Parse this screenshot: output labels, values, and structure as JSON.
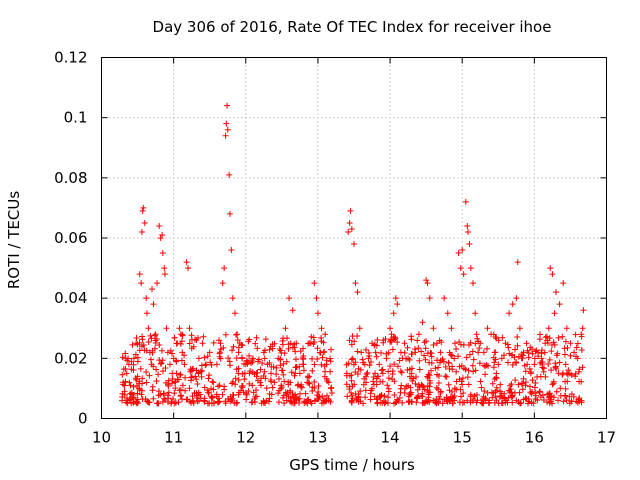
{
  "chart_data": {
    "type": "scatter",
    "title": "Day 306 of 2016, Rate Of TEC Index for receiver ihoe",
    "xlabel": "GPS time / hours",
    "ylabel": "ROTI / TECUs",
    "xlim": [
      10,
      17
    ],
    "ylim": [
      0,
      0.12
    ],
    "xticks": [
      "10",
      "11",
      "12",
      "13",
      "14",
      "15",
      "16",
      "17"
    ],
    "yticks": [
      "0",
      "0.02",
      "0.04",
      "0.06",
      "0.08",
      "0.1",
      "0.12"
    ],
    "xtick_values": [
      10,
      11,
      12,
      13,
      14,
      15,
      16,
      17
    ],
    "ytick_values": [
      0,
      0.02,
      0.04,
      0.06,
      0.08,
      0.1,
      0.12
    ],
    "grid": true,
    "marker": "+",
    "series_color": "#ff0000",
    "series": [
      {
        "name": "ROTI",
        "points": [
          [
            10.3,
            0.012
          ],
          [
            10.32,
            0.009
          ],
          [
            10.35,
            0.015
          ],
          [
            10.38,
            0.018
          ],
          [
            10.4,
            0.011
          ],
          [
            10.42,
            0.008
          ],
          [
            10.45,
            0.02
          ],
          [
            10.48,
            0.025
          ],
          [
            10.5,
            0.014
          ],
          [
            10.52,
            0.01
          ],
          [
            10.53,
            0.048
          ],
          [
            10.55,
            0.045
          ],
          [
            10.56,
            0.062
          ],
          [
            10.57,
            0.069
          ],
          [
            10.58,
            0.07
          ],
          [
            10.6,
            0.065
          ],
          [
            10.62,
            0.04
          ],
          [
            10.63,
            0.035
          ],
          [
            10.65,
            0.03
          ],
          [
            10.67,
            0.022
          ],
          [
            10.7,
            0.043
          ],
          [
            10.72,
            0.038
          ],
          [
            10.75,
            0.028
          ],
          [
            10.77,
            0.045
          ],
          [
            10.8,
            0.064
          ],
          [
            10.82,
            0.06
          ],
          [
            10.84,
            0.061
          ],
          [
            10.85,
            0.055
          ],
          [
            10.87,
            0.05
          ],
          [
            10.88,
            0.048
          ],
          [
            10.9,
            0.03
          ],
          [
            10.92,
            0.022
          ],
          [
            10.95,
            0.018
          ],
          [
            10.98,
            0.015
          ],
          [
            11.0,
            0.02
          ],
          [
            11.02,
            0.012
          ],
          [
            11.05,
            0.025
          ],
          [
            11.08,
            0.03
          ],
          [
            11.1,
            0.028
          ],
          [
            11.12,
            0.022
          ],
          [
            11.15,
            0.018
          ],
          [
            11.18,
            0.052
          ],
          [
            11.2,
            0.05
          ],
          [
            11.22,
            0.03
          ],
          [
            11.25,
            0.016
          ],
          [
            11.3,
            0.014
          ],
          [
            11.35,
            0.02
          ],
          [
            11.4,
            0.025
          ],
          [
            11.45,
            0.018
          ],
          [
            11.5,
            0.022
          ],
          [
            11.55,
            0.012
          ],
          [
            11.6,
            0.018
          ],
          [
            11.65,
            0.025
          ],
          [
            11.68,
            0.045
          ],
          [
            11.7,
            0.05
          ],
          [
            11.72,
            0.094
          ],
          [
            11.73,
            0.098
          ],
          [
            11.74,
            0.104
          ],
          [
            11.75,
            0.096
          ],
          [
            11.77,
            0.081
          ],
          [
            11.78,
            0.068
          ],
          [
            11.8,
            0.056
          ],
          [
            11.82,
            0.04
          ],
          [
            11.85,
            0.035
          ],
          [
            11.88,
            0.028
          ],
          [
            11.9,
            0.022
          ],
          [
            11.95,
            0.02
          ],
          [
            12.0,
            0.018
          ],
          [
            12.05,
            0.015
          ],
          [
            12.1,
            0.02
          ],
          [
            12.15,
            0.014
          ],
          [
            12.2,
            0.012
          ],
          [
            12.25,
            0.022
          ],
          [
            12.3,
            0.018
          ],
          [
            12.35,
            0.015
          ],
          [
            12.4,
            0.012
          ],
          [
            12.45,
            0.02
          ],
          [
            12.5,
            0.016
          ],
          [
            12.55,
            0.03
          ],
          [
            12.6,
            0.04
          ],
          [
            12.65,
            0.036
          ],
          [
            12.7,
            0.025
          ],
          [
            12.75,
            0.015
          ],
          [
            12.8,
            0.018
          ],
          [
            12.85,
            0.012
          ],
          [
            12.9,
            0.025
          ],
          [
            12.95,
            0.045
          ],
          [
            12.98,
            0.04
          ],
          [
            13.0,
            0.035
          ],
          [
            13.05,
            0.03
          ],
          [
            13.08,
            0.022
          ],
          [
            13.1,
            0.028
          ],
          [
            13.12,
            0.018
          ],
          [
            13.15,
            0.012
          ],
          [
            13.18,
            0.01
          ],
          [
            13.4,
            0.015
          ],
          [
            13.42,
            0.062
          ],
          [
            13.44,
            0.065
          ],
          [
            13.45,
            0.069
          ],
          [
            13.47,
            0.063
          ],
          [
            13.5,
            0.058
          ],
          [
            13.52,
            0.045
          ],
          [
            13.55,
            0.042
          ],
          [
            13.58,
            0.03
          ],
          [
            13.6,
            0.022
          ],
          [
            13.65,
            0.018
          ],
          [
            13.7,
            0.02
          ],
          [
            13.75,
            0.025
          ],
          [
            13.8,
            0.022
          ],
          [
            13.85,
            0.018
          ],
          [
            13.9,
            0.015
          ],
          [
            13.95,
            0.02
          ],
          [
            14.0,
            0.03
          ],
          [
            14.02,
            0.028
          ],
          [
            14.05,
            0.035
          ],
          [
            14.08,
            0.04
          ],
          [
            14.1,
            0.038
          ],
          [
            14.15,
            0.022
          ],
          [
            14.2,
            0.025
          ],
          [
            14.25,
            0.02
          ],
          [
            14.3,
            0.015
          ],
          [
            14.35,
            0.022
          ],
          [
            14.4,
            0.028
          ],
          [
            14.45,
            0.032
          ],
          [
            14.5,
            0.046
          ],
          [
            14.52,
            0.045
          ],
          [
            14.55,
            0.04
          ],
          [
            14.6,
            0.03
          ],
          [
            14.65,
            0.025
          ],
          [
            14.7,
            0.022
          ],
          [
            14.75,
            0.04
          ],
          [
            14.8,
            0.035
          ],
          [
            14.85,
            0.03
          ],
          [
            14.9,
            0.025
          ],
          [
            14.95,
            0.055
          ],
          [
            14.98,
            0.05
          ],
          [
            15.0,
            0.056
          ],
          [
            15.02,
            0.048
          ],
          [
            15.05,
            0.072
          ],
          [
            15.07,
            0.064
          ],
          [
            15.08,
            0.062
          ],
          [
            15.1,
            0.058
          ],
          [
            15.12,
            0.05
          ],
          [
            15.15,
            0.045
          ],
          [
            15.18,
            0.035
          ],
          [
            15.2,
            0.028
          ],
          [
            15.25,
            0.025
          ],
          [
            15.3,
            0.022
          ],
          [
            15.35,
            0.03
          ],
          [
            15.4,
            0.028
          ],
          [
            15.45,
            0.022
          ],
          [
            15.5,
            0.018
          ],
          [
            15.55,
            0.02
          ],
          [
            15.6,
            0.025
          ],
          [
            15.65,
            0.035
          ],
          [
            15.7,
            0.038
          ],
          [
            15.75,
            0.04
          ],
          [
            15.77,
            0.052
          ],
          [
            15.8,
            0.03
          ],
          [
            15.85,
            0.022
          ],
          [
            15.9,
            0.018
          ],
          [
            15.95,
            0.015
          ],
          [
            16.0,
            0.018
          ],
          [
            16.05,
            0.022
          ],
          [
            16.1,
            0.02
          ],
          [
            16.15,
            0.025
          ],
          [
            16.2,
            0.03
          ],
          [
            16.22,
            0.05
          ],
          [
            16.25,
            0.048
          ],
          [
            16.28,
            0.035
          ],
          [
            16.3,
            0.042
          ],
          [
            16.35,
            0.038
          ],
          [
            16.4,
            0.045
          ],
          [
            16.45,
            0.03
          ],
          [
            16.5,
            0.025
          ],
          [
            16.55,
            0.022
          ],
          [
            16.6,
            0.02
          ],
          [
            16.65,
            0.028
          ],
          [
            16.67,
            0.03
          ],
          [
            16.68,
            0.036
          ]
        ],
        "band": {
          "segments": [
            [
              10.28,
              13.2
            ],
            [
              13.38,
              16.68
            ]
          ],
          "base_min": 0.005,
          "base_max": 0.028,
          "count": 1100
        }
      }
    ]
  }
}
